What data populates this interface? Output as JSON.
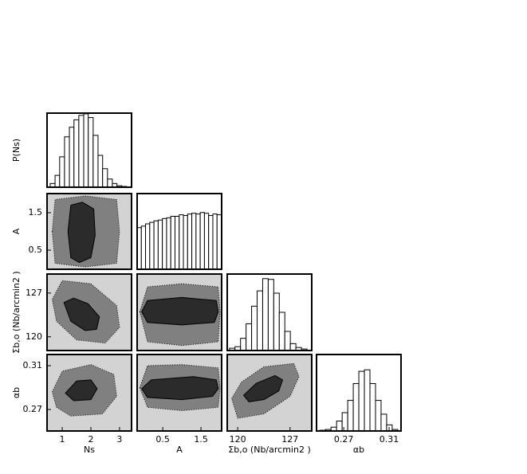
{
  "chart_data": [
    {
      "type": "histogram",
      "ylabel": "P(Ns)",
      "xlim": [
        0.47,
        3.42
      ],
      "ylim": [
        0,
        1.0
      ],
      "bins": [
        0.58,
        0.75,
        0.91,
        1.08,
        1.25,
        1.41,
        1.58,
        1.75,
        1.91,
        2.08,
        2.25,
        2.41,
        2.58,
        2.75,
        2.91,
        3.08,
        3.25
      ],
      "values": [
        0.05,
        0.16,
        0.41,
        0.68,
        0.81,
        0.91,
        0.97,
        0.99,
        0.94,
        0.7,
        0.43,
        0.25,
        0.11,
        0.05,
        0.02,
        0.01
      ],
      "color": "#ffffff"
    },
    {
      "type": "contour",
      "ylabel": "A",
      "xlim": [
        0.47,
        3.42
      ],
      "ylim": [
        -0.01,
        2.01
      ],
      "yticks": [
        0.5,
        1.5
      ],
      "facecolor": "#d3d3d3",
      "contours": [
        {
          "x": [
            0.65,
            0.75,
            1.8,
            2.9,
            3.0,
            2.9,
            1.8,
            0.75
          ],
          "y": [
            1.0,
            1.85,
            1.95,
            1.85,
            1.0,
            0.15,
            0.05,
            0.15
          ],
          "color": "#808080"
        },
        {
          "x": [
            1.2,
            1.3,
            1.7,
            2.1,
            2.15,
            2.0,
            1.6,
            1.3
          ],
          "y": [
            1.0,
            1.7,
            1.78,
            1.6,
            0.9,
            0.3,
            0.17,
            0.3
          ],
          "color": "#2b2b2b"
        }
      ]
    },
    {
      "type": "histogram",
      "xlim": [
        -0.17,
        2.04
      ],
      "ylim": [
        0,
        1.0
      ],
      "bins": [
        -0.17,
        -0.06,
        0.05,
        0.16,
        0.27,
        0.38,
        0.49,
        0.6,
        0.71,
        0.82,
        0.93,
        1.04,
        1.15,
        1.26,
        1.37,
        1.48,
        1.59,
        1.7,
        1.81,
        1.92,
        2.03
      ],
      "values": [
        0.55,
        0.57,
        0.6,
        0.62,
        0.64,
        0.65,
        0.67,
        0.68,
        0.7,
        0.7,
        0.72,
        0.71,
        0.73,
        0.74,
        0.73,
        0.75,
        0.74,
        0.71,
        0.73,
        0.72
      ],
      "color": "#ffffff"
    },
    {
      "type": "contour",
      "ylabel": "Σb,o (Nb/arcmin2 )",
      "xlim": [
        0.47,
        3.42
      ],
      "ylim": [
        117.8,
        130.05
      ],
      "yticks": [
        120,
        127
      ],
      "facecolor": "#d3d3d3",
      "contours": [
        {
          "x": [
            0.65,
            1.0,
            2.0,
            2.9,
            3.0,
            2.5,
            1.5,
            0.8
          ],
          "y": [
            126,
            129,
            128.5,
            125,
            121.5,
            119,
            119.5,
            122.5
          ],
          "color": "#808080"
        },
        {
          "x": [
            1.06,
            1.4,
            1.9,
            2.3,
            2.2,
            1.8,
            1.3
          ],
          "y": [
            125.5,
            126.2,
            125.3,
            123.2,
            121.2,
            121.0,
            122.5
          ],
          "color": "#2b2b2b"
        }
      ]
    },
    {
      "type": "contour",
      "xlim": [
        -0.17,
        2.04
      ],
      "ylim": [
        117.8,
        130.05
      ],
      "facecolor": "#d3d3d3",
      "contours": [
        {
          "x": [
            -0.1,
            0.1,
            1.0,
            1.95,
            2.0,
            1.95,
            1.0,
            0.1
          ],
          "y": [
            124,
            128,
            128.5,
            128,
            124,
            119.2,
            118.6,
            119.2
          ],
          "color": "#808080"
        },
        {
          "x": [
            -0.05,
            0.1,
            1.0,
            1.9,
            1.95,
            1.85,
            1.0,
            0.1
          ],
          "y": [
            124,
            125.8,
            126.3,
            125.8,
            124,
            122.3,
            121.9,
            122.3
          ],
          "color": "#2b2b2b"
        }
      ]
    },
    {
      "type": "histogram",
      "xlim": [
        118.6,
        129.9
      ],
      "ylim": [
        0,
        1.0
      ],
      "bins": [
        118.9,
        119.64,
        120.38,
        121.12,
        121.86,
        122.6,
        123.34,
        124.08,
        124.82,
        125.56,
        126.3,
        127.04,
        127.78,
        128.52,
        129.26
      ],
      "values": [
        0.03,
        0.05,
        0.16,
        0.35,
        0.58,
        0.78,
        0.94,
        0.93,
        0.75,
        0.5,
        0.25,
        0.09,
        0.04,
        0.02
      ],
      "color": "#ffffff"
    },
    {
      "type": "contour",
      "xlabel": "Ns",
      "ylabel": "αb",
      "xlim": [
        0.47,
        3.42
      ],
      "ylim": [
        0.2504,
        0.3202
      ],
      "xticks": [
        1,
        2,
        3
      ],
      "yticks": [
        0.27,
        0.31
      ],
      "facecolor": "#d3d3d3",
      "contours": [
        {
          "x": [
            0.65,
            1.0,
            2.0,
            2.8,
            2.9,
            2.4,
            1.3,
            0.8
          ],
          "y": [
            0.286,
            0.305,
            0.311,
            0.302,
            0.282,
            0.266,
            0.264,
            0.272
          ],
          "color": "#808080"
        },
        {
          "x": [
            1.11,
            1.5,
            2.0,
            2.22,
            2.0,
            1.4
          ],
          "y": [
            0.285,
            0.296,
            0.297,
            0.289,
            0.279,
            0.278
          ],
          "color": "#2b2b2b"
        }
      ]
    },
    {
      "type": "contour",
      "xlabel": "A",
      "xlim": [
        -0.17,
        2.04
      ],
      "ylim": [
        0.2504,
        0.3202
      ],
      "xticks": [
        0.5,
        1.5
      ],
      "facecolor": "#d3d3d3",
      "contours": [
        {
          "x": [
            -0.1,
            0.1,
            1.0,
            1.95,
            2.0,
            1.95,
            1.0,
            0.1
          ],
          "y": [
            0.29,
            0.31,
            0.311,
            0.308,
            0.29,
            0.272,
            0.269,
            0.272
          ],
          "color": "#808080"
        },
        {
          "x": [
            -0.05,
            0.2,
            1.3,
            1.9,
            1.95,
            1.8,
            1.0,
            0.1
          ],
          "y": [
            0.289,
            0.297,
            0.3,
            0.297,
            0.289,
            0.282,
            0.279,
            0.281
          ],
          "color": "#2b2b2b"
        }
      ]
    },
    {
      "type": "contour",
      "xlabel": "Σb,o (Nb/arcmin2 )",
      "xlim": [
        118.6,
        129.9
      ],
      "ylim": [
        0.2504,
        0.3202
      ],
      "xticks": [
        120,
        127
      ],
      "facecolor": "#d3d3d3",
      "contours": [
        {
          "x": [
            119.2,
            120.5,
            123.5,
            127.5,
            128.2,
            127,
            123.5,
            120
          ],
          "y": [
            0.28,
            0.295,
            0.309,
            0.312,
            0.3,
            0.282,
            0.266,
            0.262
          ],
          "color": "#808080"
        },
        {
          "x": [
            120.8,
            122.5,
            125,
            126,
            125.5,
            123.5,
            121.5
          ],
          "y": [
            0.283,
            0.294,
            0.301,
            0.297,
            0.287,
            0.279,
            0.277
          ],
          "color": "#2b2b2b"
        }
      ]
    },
    {
      "type": "histogram",
      "xlabel": "αb",
      "xlim": [
        0.246,
        0.3205
      ],
      "ylim": [
        0,
        1.0
      ],
      "xticks": [
        0.27,
        0.31
      ],
      "bins": [
        0.249,
        0.2539,
        0.2588,
        0.2637,
        0.2686,
        0.2735,
        0.2784,
        0.2833,
        0.2882,
        0.2931,
        0.298,
        0.3029,
        0.3078,
        0.3127,
        0.3176
      ],
      "values": [
        0.01,
        0.02,
        0.05,
        0.13,
        0.24,
        0.4,
        0.62,
        0.78,
        0.8,
        0.62,
        0.4,
        0.22,
        0.08,
        0.02
      ],
      "color": "#ffffff"
    }
  ]
}
